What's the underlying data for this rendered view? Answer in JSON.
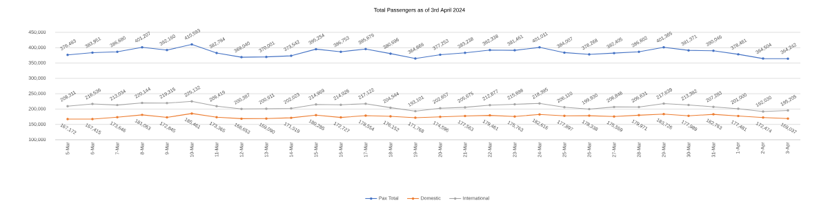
{
  "chart_data": {
    "type": "line",
    "title": "Total Passengers as of 3rd April 2024",
    "categories": [
      "5-Mar",
      "6-Mar",
      "7-Mar",
      "8-Mar",
      "9-Mar",
      "10-Mar",
      "11-Mar",
      "12-Mar",
      "13-Mar",
      "14-Mar",
      "15-Mar",
      "16-Mar",
      "17-Mar",
      "18-Mar",
      "19-Mar",
      "20-Mar",
      "21-Mar",
      "22-Mar",
      "23-Mar",
      "24-Mar",
      "25-Mar",
      "26-Mar",
      "27-Mar",
      "28-Mar",
      "29-Mar",
      "30-Mar",
      "31-Mar",
      "1-Apr",
      "2-Apr",
      "3-Apr"
    ],
    "series": [
      {
        "name": "Pax Total",
        "color": "#4472c4",
        "values": [
          376483,
          383951,
          386680,
          401207,
          392160,
          410593,
          382784,
          369040,
          370001,
          373542,
          395254,
          386753,
          395676,
          380696,
          364869,
          377253,
          383238,
          392338,
          391461,
          401011,
          384007,
          378268,
          382405,
          386602,
          401365,
          391371,
          390046,
          378481,
          364504,
          364242
        ],
        "value_labels": [
          "376,483",
          "383,951",
          "386,680",
          "401,207",
          "392,160",
          "410,593",
          "382,784",
          "369,040",
          "370,001",
          "373,542",
          "395,254",
          "386,753",
          "395,676",
          "380,696",
          "364,869",
          "377,253",
          "383,238",
          "392,338",
          "391,461",
          "401,011",
          "384,007",
          "378,268",
          "382,405",
          "386,602",
          "401,365",
          "391,371",
          "390,046",
          "378,481",
          "364,504",
          "364,242"
        ]
      },
      {
        "name": "Domestic",
        "color": "#ed7d31",
        "values": [
          167172,
          167415,
          173646,
          181063,
          172845,
          185461,
          173365,
          168653,
          169090,
          171519,
          180285,
          172727,
          178554,
          176152,
          171768,
          174596,
          177563,
          179461,
          175763,
          182616,
          177897,
          178338,
          175559,
          179971,
          183726,
          177989,
          182763,
          177481,
          172474,
          169037
        ],
        "value_labels": [
          "167,172",
          "167,415",
          "173,646",
          "181,063",
          "172,845",
          "185,461",
          "173,365",
          "168,653",
          "169,090",
          "171,519",
          "180,285",
          "172,727",
          "178,554",
          "176,152",
          "171,768",
          "174,596",
          "177,563",
          "179,461",
          "175,763",
          "182,616",
          "177,897",
          "178,338",
          "175,559",
          "179,971",
          "183,726",
          "177,989",
          "182,763",
          "177,481",
          "172,474",
          "169,037"
        ]
      },
      {
        "name": "International",
        "color": "#a5a5a5",
        "values": [
          209311,
          216536,
          213034,
          220144,
          219315,
          225132,
          209419,
          200387,
          200911,
          202023,
          214969,
          214026,
          217122,
          204544,
          193101,
          202657,
          205675,
          212877,
          215698,
          218395,
          206110,
          199930,
          206846,
          206631,
          217639,
          213382,
          207283,
          201000,
          192030,
          195205
        ],
        "value_labels": [
          "209,311",
          "216,536",
          "213,034",
          "220,144",
          "219,315",
          "225,132",
          "209,419",
          "200,387",
          "200,911",
          "202,023",
          "214,969",
          "214,026",
          "217,122",
          "204,544",
          "193,101",
          "202,657",
          "205,675",
          "212,877",
          "215,698",
          "218,395",
          "206,110",
          "199,930",
          "206,846",
          "206,631",
          "217,639",
          "213,382",
          "207,283",
          "201,000",
          "192,030",
          "195,205"
        ]
      }
    ],
    "ylim": [
      100000,
      450000
    ],
    "yticks": [
      {
        "value": 100000,
        "label": "100,000"
      },
      {
        "value": 150000,
        "label": "150,000"
      },
      {
        "value": 200000,
        "label": "200,000"
      },
      {
        "value": 250000,
        "label": "250,000"
      },
      {
        "value": 300000,
        "label": "300,000"
      },
      {
        "value": 350000,
        "label": "350,000"
      },
      {
        "value": 400000,
        "label": "400,000"
      },
      {
        "value": 450000,
        "label": "450,000"
      }
    ],
    "grid": "y",
    "legend": "bottom",
    "marker": "circle",
    "line_style": "solid"
  }
}
